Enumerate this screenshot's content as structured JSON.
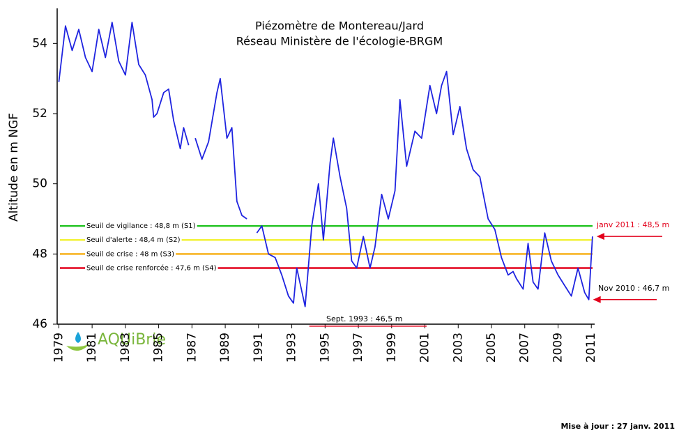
{
  "chart_data": {
    "type": "line",
    "title": "Piézomètre de Montereau/Jard",
    "subtitle": "Réseau Ministère de l'écologie-BRGM",
    "y_label": "Altitude en m NGF",
    "footer": "Mise à jour : 27 janv. 2011",
    "logo": "AQUiBrie",
    "xlim": [
      1978.9,
      2011.2
    ],
    "xticks": [
      1979,
      1981,
      1983,
      1985,
      1987,
      1989,
      1991,
      1993,
      1995,
      1997,
      1999,
      2001,
      2003,
      2005,
      2007,
      2009,
      2011
    ],
    "ylim": [
      46,
      55
    ],
    "yticks": [
      46,
      48,
      50,
      52,
      54
    ],
    "series": [
      {
        "color": "#1f24e0",
        "x": [
          1979.0,
          1979.4,
          1979.8,
          1980.2,
          1980.6,
          1981.0,
          1981.4,
          1981.8,
          1982.2,
          1982.6,
          1983.0,
          1983.4,
          1983.8,
          1984.2,
          1984.6,
          1984.7,
          1984.9,
          1985.3,
          1985.6,
          1985.9,
          1986.3,
          1986.5,
          1986.8,
          1987.0,
          1987.2,
          1987.6,
          1988.0,
          1988.5,
          1988.7,
          1989.1,
          1989.4,
          1989.7,
          1990.0,
          1990.3,
          1990.6,
          1990.9,
          1991.2,
          1991.6,
          1992.0,
          1992.4,
          1992.8,
          1993.1,
          1993.3,
          1993.8,
          1994.2,
          1994.6,
          1994.9,
          1995.3,
          1995.5,
          1995.9,
          1996.3,
          1996.6,
          1996.9,
          1997.3,
          1997.7,
          1998.0,
          1998.4,
          1998.8,
          1999.2,
          1999.5,
          1999.9,
          2000.4,
          2000.8,
          2001.3,
          2001.7,
          2002.0,
          2002.3,
          2002.7,
          2003.1,
          2003.5,
          2003.9,
          2004.3,
          2004.8,
          2005.2,
          2005.6,
          2006.0,
          2006.3,
          2006.5,
          2006.9,
          2007.2,
          2007.5,
          2007.8,
          2008.2,
          2008.6,
          2009.0,
          2009.4,
          2009.8,
          2010.2,
          2010.6,
          2010.85,
          2011.07
        ],
        "values": [
          52.9,
          54.5,
          53.8,
          54.4,
          53.6,
          53.2,
          54.4,
          53.6,
          54.6,
          53.5,
          53.1,
          54.6,
          53.4,
          53.1,
          52.4,
          51.9,
          52.0,
          52.6,
          52.7,
          51.8,
          51.0,
          51.6,
          51.1,
          null,
          51.3,
          50.7,
          51.2,
          52.6,
          53.0,
          51.3,
          51.6,
          49.5,
          49.1,
          49.0,
          null,
          48.6,
          48.8,
          48.0,
          47.9,
          47.4,
          46.8,
          46.6,
          47.6,
          46.5,
          48.8,
          50.0,
          48.4,
          50.6,
          51.3,
          50.2,
          49.3,
          47.8,
          47.6,
          48.5,
          47.6,
          48.2,
          49.7,
          49.0,
          49.8,
          52.4,
          50.5,
          51.5,
          51.3,
          52.8,
          52.0,
          52.8,
          53.2,
          51.4,
          52.2,
          51.0,
          50.4,
          50.2,
          49.0,
          48.7,
          47.9,
          47.4,
          47.5,
          47.3,
          47.0,
          48.3,
          47.2,
          47.0,
          48.6,
          47.8,
          47.4,
          47.1,
          46.8,
          47.6,
          46.9,
          46.7,
          48.5
        ]
      }
    ],
    "thresholds": [
      {
        "label": "Seuil de vigilance : 48,8 m (S1)",
        "value": 48.8,
        "color": "#22c322"
      },
      {
        "label": "Seuil d'alerte : 48,4 m (S2)",
        "value": 48.4,
        "color": "#f2f23a"
      },
      {
        "label": "Seuil de crise : 48 m (S3)",
        "value": 48,
        "color": "#f7b21e"
      },
      {
        "label": "Seuil de crise renforcée : 47,6 m (S4)",
        "value": 47.6,
        "color": "#e3001b"
      }
    ],
    "annotations": [
      {
        "text": "janv 2011 : 48,5 m",
        "x": 2011.07,
        "y": 48.5,
        "color": "#e3001b"
      },
      {
        "text": "Nov 2010 : 46,7 m",
        "x": 2010.85,
        "y": 46.7,
        "color": "#000000"
      },
      {
        "text": "Sept. 1993 : 46,5 m",
        "x": 1993.8,
        "y": 46.5,
        "color": "#000000"
      }
    ]
  }
}
